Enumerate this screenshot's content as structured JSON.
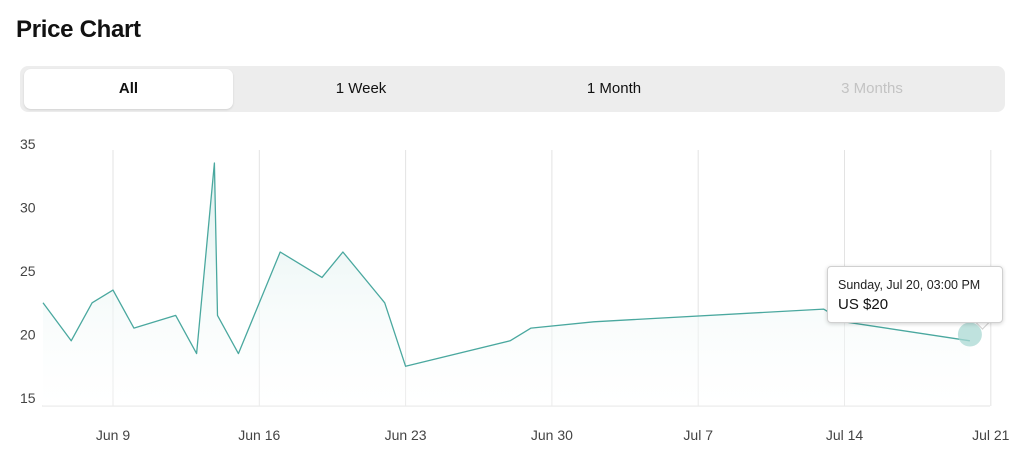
{
  "page": {
    "title": "Price Chart"
  },
  "range_tabs": [
    {
      "label": "All",
      "active": true,
      "disabled": false
    },
    {
      "label": "1 Week",
      "active": false,
      "disabled": false
    },
    {
      "label": "1 Month",
      "active": false,
      "disabled": false
    },
    {
      "label": "3 Months",
      "active": false,
      "disabled": true
    }
  ],
  "tooltip": {
    "date": "Sunday, Jul 20, 03:00 PM",
    "price": "US $20"
  },
  "colors": {
    "line": "#4aa89f",
    "fill_top": "#dcefed",
    "grid": "#e3e3e3",
    "marker": "#a9d8d3"
  },
  "chart_data": {
    "type": "area",
    "title": "",
    "xlabel": "",
    "ylabel": "",
    "x_start": "2025-06-04",
    "x": [
      "2025-06-04",
      "2025-06-07",
      "2025-06-08",
      "2025-06-09",
      "2025-06-10",
      "2025-06-12",
      "2025-06-13",
      "2025-06-13",
      "2025-06-14",
      "2025-06-15",
      "2025-06-17",
      "2025-06-19",
      "2025-06-20",
      "2025-06-22",
      "2025-06-23",
      "2025-06-28",
      "2025-06-29",
      "2025-07-02",
      "2025-07-13",
      "2025-07-14",
      "2025-07-20"
    ],
    "y": [
      22.5,
      19.5,
      22.5,
      23.5,
      20.5,
      21.5,
      18.5,
      33.5,
      21.5,
      18.5,
      26.5,
      24.5,
      26.5,
      22.5,
      17.5,
      19.5,
      20.5,
      21.0,
      22.0,
      21.0,
      19.5
    ],
    "x_ticks": [
      "Jun 9",
      "Jun 16",
      "Jun 23",
      "Jun 30",
      "Jul 7",
      "Jul 14",
      "Jul 21"
    ],
    "y_ticks": [
      15,
      20,
      25,
      30,
      35
    ],
    "ylim": [
      15,
      35
    ],
    "grid": {
      "vertical": true,
      "horizontal": false
    },
    "highlight": {
      "x": "2025-07-20",
      "y": 20
    }
  }
}
